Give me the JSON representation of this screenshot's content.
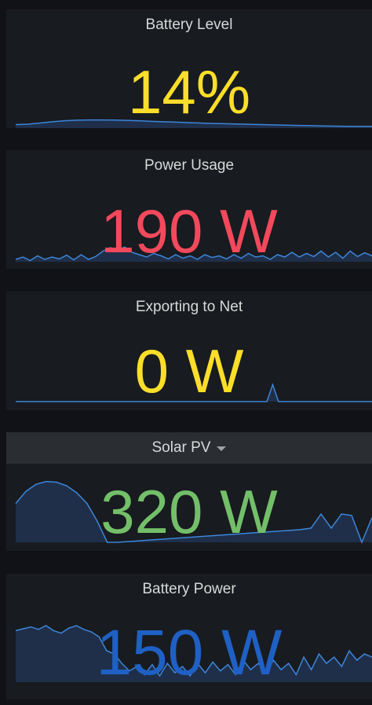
{
  "panels": [
    {
      "title": "Battery Level",
      "value": "14%",
      "color": "#fade2a",
      "sparkline": [
        0.25,
        0.28,
        0.36,
        0.45,
        0.52,
        0.56,
        0.58,
        0.58,
        0.57,
        0.55,
        0.52,
        0.48,
        0.45,
        0.42,
        0.39,
        0.36,
        0.33,
        0.31,
        0.29,
        0.27,
        0.25,
        0.23,
        0.21,
        0.19,
        0.17,
        0.15,
        0.14,
        0.13,
        0.12,
        0.12
      ]
    },
    {
      "title": "Power Usage",
      "value": "190 W",
      "color": "#f2495c",
      "sparkline": [
        0.1,
        0.2,
        0.05,
        0.25,
        0.1,
        0.2,
        0.12,
        0.28,
        0.08,
        0.3,
        0.1,
        0.22,
        0.45,
        0.6,
        0.5,
        0.62,
        0.4,
        0.3,
        0.2,
        0.35,
        0.25,
        0.12,
        0.3,
        0.15,
        0.25,
        0.1,
        0.3,
        0.18,
        0.25,
        0.12,
        0.3,
        0.15,
        0.35,
        0.2,
        0.25,
        0.1,
        0.3,
        0.2,
        0.4,
        0.2,
        0.35,
        0.22,
        0.45,
        0.2,
        0.4,
        0.15,
        0.45,
        0.22,
        0.38,
        0.25
      ]
    },
    {
      "title": "Exporting to Net",
      "value": "0 W",
      "color": "#fade2a",
      "sparkline": [
        0,
        0,
        0,
        0,
        0,
        0,
        0,
        0,
        0,
        0,
        0,
        0,
        0,
        0,
        0,
        0,
        0,
        0,
        0,
        0,
        0,
        0,
        0,
        0,
        0,
        0,
        0,
        0,
        0,
        0,
        0,
        0,
        0,
        0,
        0,
        0,
        0,
        0,
        0,
        0,
        0,
        0,
        0,
        0,
        0.9,
        0,
        0,
        0,
        0,
        0,
        0,
        0,
        0,
        0,
        0,
        0,
        0,
        0,
        0,
        0,
        0,
        0
      ]
    },
    {
      "title": "Solar PV",
      "value": "320 W",
      "color": "#73bf69",
      "sparkline": [
        0.55,
        0.72,
        0.82,
        0.86,
        0.85,
        0.8,
        0.7,
        0.55,
        0.3,
        0.0,
        0.0,
        0.01,
        0.02,
        0.03,
        0.04,
        0.05,
        0.06,
        0.07,
        0.08,
        0.09,
        0.1,
        0.11,
        0.12,
        0.13,
        0.14,
        0.15,
        0.16,
        0.17,
        0.18,
        0.2,
        0.4,
        0.2,
        0.4,
        0.38,
        0.0,
        0.35
      ]
    },
    {
      "title": "Battery Power",
      "value": "150 W",
      "color": "#1f60c4",
      "sparkline": [
        0.82,
        0.85,
        0.88,
        0.84,
        0.9,
        0.82,
        0.78,
        0.86,
        0.9,
        0.84,
        0.8,
        0.72,
        0.5,
        0.45,
        0.3,
        0.18,
        0.25,
        0.12,
        0.28,
        0.1,
        0.3,
        0.15,
        0.25,
        0.1,
        0.3,
        0.15,
        0.32,
        0.18,
        0.28,
        0.12,
        0.35,
        0.2,
        0.3,
        0.15,
        0.35,
        0.2,
        0.3,
        0.12,
        0.4,
        0.2,
        0.45,
        0.3,
        0.4,
        0.25,
        0.5,
        0.35,
        0.45,
        0.4
      ]
    }
  ],
  "style": {
    "panel_bg": "#181b1f",
    "sparkline_line": "#3d85d9",
    "sparkline_fill": "#1f2f4a",
    "title_color": "#d8d9da"
  }
}
